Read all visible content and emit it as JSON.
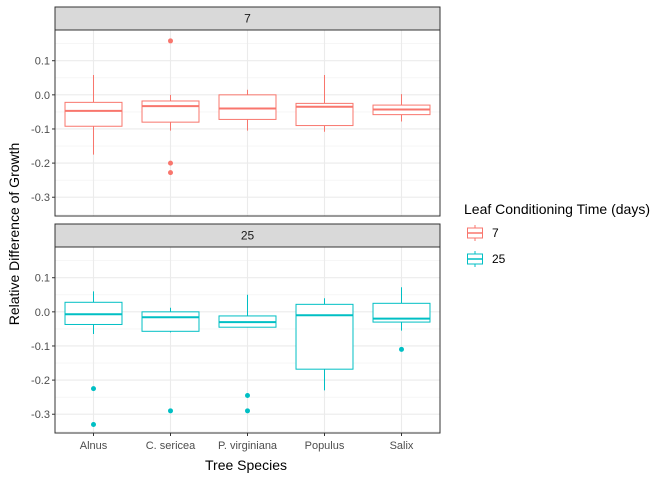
{
  "chart_data": {
    "type": "boxplot",
    "xlabel": "Tree Species",
    "ylabel": "Relative Difference of Growth",
    "categories": [
      "Alnus",
      "C. sericea",
      "P. virginiana",
      "Populus",
      "Salix"
    ],
    "ylim": [
      -0.355,
      0.19
    ],
    "yticks": [
      0.1,
      0.0,
      -0.1,
      -0.2,
      -0.3
    ],
    "ytick_labels": [
      "0.1",
      "0.0",
      "-0.1",
      "-0.2",
      "-0.3"
    ],
    "legend": {
      "title": "Leaf Conditioning Time (days)",
      "position": "right",
      "entries": [
        {
          "label": "7",
          "color": "#F8766D"
        },
        {
          "label": "25",
          "color": "#00BFC4"
        }
      ]
    },
    "grid": true,
    "panels": [
      {
        "label": "7",
        "color": "#F8766D",
        "boxes": [
          {
            "category": "Alnus",
            "whisker_low": -0.175,
            "q1": -0.092,
            "median": -0.047,
            "q3": -0.022,
            "whisker_high": 0.058,
            "outliers": []
          },
          {
            "category": "C. sericea",
            "whisker_low": -0.105,
            "q1": -0.08,
            "median": -0.033,
            "q3": -0.018,
            "whisker_high": 0.0,
            "outliers": [
              0.158,
              -0.2,
              -0.228
            ]
          },
          {
            "category": "P. virginiana",
            "whisker_low": -0.105,
            "q1": -0.072,
            "median": -0.04,
            "q3": 0.0,
            "whisker_high": 0.015,
            "outliers": []
          },
          {
            "category": "Populus",
            "whisker_low": -0.108,
            "q1": -0.09,
            "median": -0.035,
            "q3": -0.025,
            "whisker_high": 0.058,
            "outliers": []
          },
          {
            "category": "Salix",
            "whisker_low": -0.078,
            "q1": -0.058,
            "median": -0.043,
            "q3": -0.03,
            "whisker_high": 0.002,
            "outliers": []
          }
        ]
      },
      {
        "label": "25",
        "color": "#00BFC4",
        "boxes": [
          {
            "category": "Alnus",
            "whisker_low": -0.065,
            "q1": -0.037,
            "median": -0.007,
            "q3": 0.028,
            "whisker_high": 0.06,
            "outliers": [
              -0.225,
              -0.33
            ]
          },
          {
            "category": "C. sericea",
            "whisker_low": -0.06,
            "q1": -0.057,
            "median": -0.016,
            "q3": 0.0,
            "whisker_high": 0.012,
            "outliers": [
              -0.29
            ]
          },
          {
            "category": "P. virginiana",
            "whisker_low": -0.045,
            "q1": -0.045,
            "median": -0.03,
            "q3": -0.012,
            "whisker_high": 0.05,
            "outliers": [
              -0.245,
              -0.29
            ]
          },
          {
            "category": "Populus",
            "whisker_low": -0.23,
            "q1": -0.168,
            "median": -0.01,
            "q3": 0.022,
            "whisker_high": 0.04,
            "outliers": []
          },
          {
            "category": "Salix",
            "whisker_low": -0.055,
            "q1": -0.03,
            "median": -0.02,
            "q3": 0.025,
            "whisker_high": 0.072,
            "outliers": [
              -0.11
            ]
          }
        ]
      }
    ]
  }
}
